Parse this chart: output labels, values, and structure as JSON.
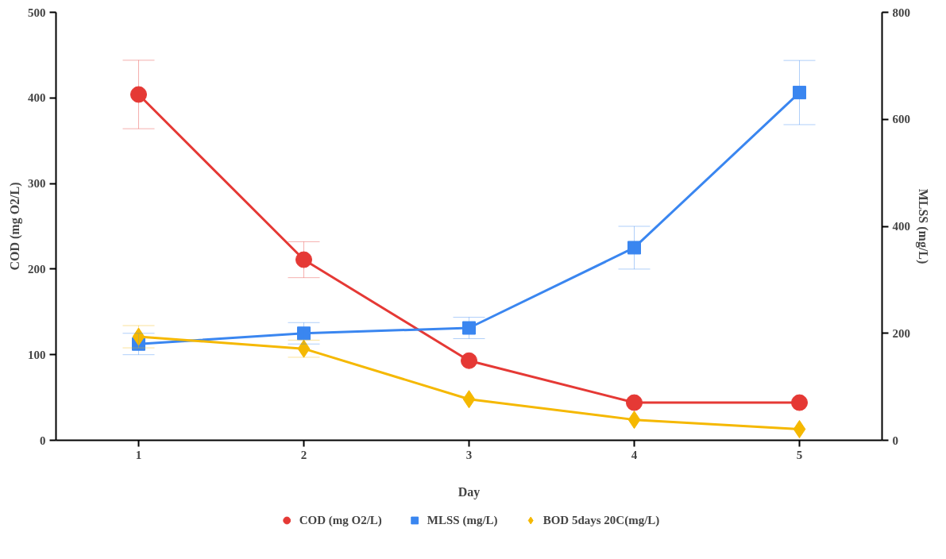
{
  "chart_data": {
    "type": "line",
    "xlabel": "Day",
    "ylabel": "COD (mg O2/L)",
    "y2label": "MLSS (mg/L)",
    "x": [
      1,
      2,
      3,
      4,
      5
    ],
    "xlim": [
      0.5,
      5.5
    ],
    "xticks": [
      1,
      2,
      3,
      4,
      5
    ],
    "ylim": [
      0,
      500
    ],
    "yticks": [
      0,
      100,
      200,
      300,
      400,
      500
    ],
    "y2lim": [
      0,
      800
    ],
    "y2ticks": [
      0,
      200,
      400,
      600,
      800
    ],
    "grid": false,
    "legend": "bottom",
    "series": [
      {
        "name": "COD (mg O2/L)",
        "color": "#e53935",
        "marker": "circle",
        "values": [
          404,
          211,
          93,
          44,
          44
        ],
        "errors": [
          40,
          21,
          null,
          null,
          null
        ]
      },
      {
        "name": "MLSS (mg/L)",
        "color": "#3a86f0",
        "marker": "square",
        "axis": "y2",
        "values": [
          180,
          200,
          210,
          360,
          650
        ],
        "errors": [
          20,
          20,
          20,
          40,
          60
        ]
      },
      {
        "name": "BOD 5days 20C(mg/L)",
        "color": "#f5b800",
        "marker": "diamond",
        "values": [
          121,
          107,
          48,
          24,
          13
        ],
        "errors": [
          13,
          10,
          null,
          null,
          null
        ]
      }
    ]
  }
}
